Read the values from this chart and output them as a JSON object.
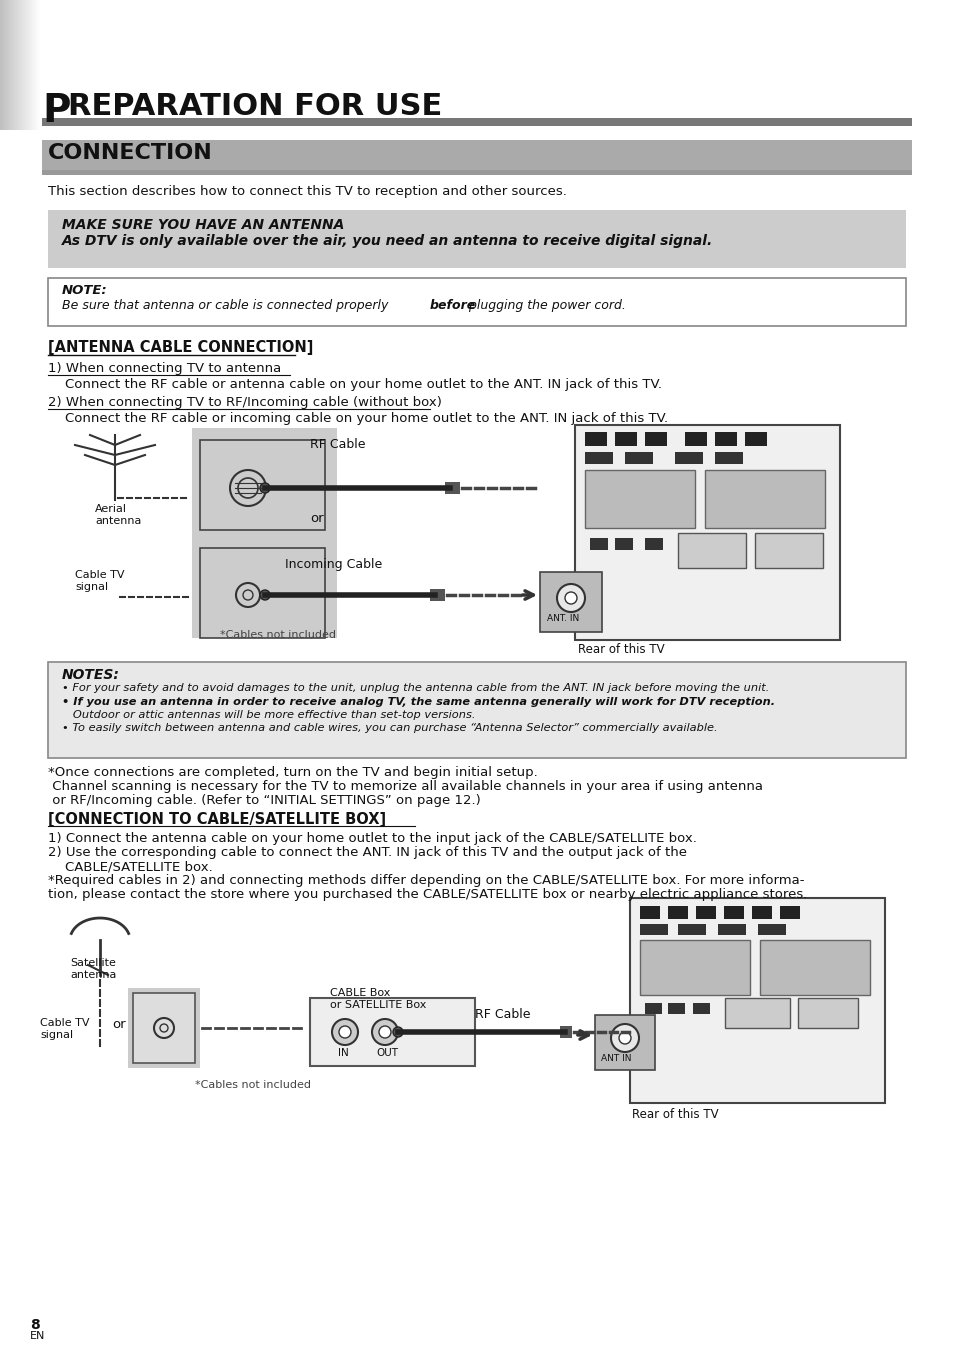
{
  "page_bg": "#ffffff",
  "tab_color": "#cccccc",
  "header_bar_color": "#666666",
  "section_bar_color": "#aaaaaa",
  "note_box_bg": "#dddddd",
  "note_box_border": "#666666",
  "white_box_bg": "#ffffff",
  "white_box_border": "#555555",
  "title_text": "REPARATION FOR USE",
  "title_prefix": "P",
  "section_title": "CONNECTION",
  "intro_text": "This section describes how to connect this TV to reception and other sources.",
  "antenna_note_line1": "MAKE SURE YOU HAVE AN ANTENNA",
  "antenna_note_line2": "As DTV is only available over the air, you need an antenna to receive digital signal.",
  "note_title": "NOTE:",
  "note_body_part1": "Be sure that antenna or cable is connected properly ",
  "note_body_bold": "before",
  "note_body_part2": " plugging the power cord.",
  "antenna_section_title": "[ANTENNA CABLE CONNECTION]",
  "step1_title": "1) When connecting TV to antenna",
  "step1_body": "    Connect the RF cable or antenna cable on your home outlet to the ANT. IN jack of this TV.",
  "step2_title": "2) When connecting TV to RF/Incoming cable (without box)",
  "step2_body": "    Connect the RF cable or incoming cable on your home outlet to the ANT. IN jack of this TV.",
  "diagram1_labels": {
    "aerial_antenna": "Aerial\nantenna",
    "rf_cable": "RF Cable",
    "or_text": "or",
    "cable_tv": "Cable TV\nsignal",
    "incoming_cable": "Incoming Cable",
    "cables_not_included": "*Cables not included",
    "rear_of_tv": "Rear of this TV",
    "ant_in": "ANT. IN"
  },
  "notes_box_title": "NOTES:",
  "notes_line1": "• For your safety and to avoid damages to the unit, unplug the antenna cable from the ANT. IN jack before moving the unit.",
  "notes_line2": "• If you use an antenna in order to receive analog TV, the same antenna generally will work for DTV reception.",
  "notes_line2b": "   Outdoor or attic antennas will be more effective than set-top versions.",
  "notes_line3": "• To easily switch between antenna and cable wires, you can purchase “Antenna Selector” commercially available.",
  "after_notes_line1": "*Once connections are completed, turn on the TV and begin initial setup.",
  "after_notes_line2": " Channel scanning is necessary for the TV to memorize all available channels in your area if using antenna",
  "after_notes_line3": " or RF/Incoming cable. (Refer to “INITIAL SETTINGS” on page 12.)",
  "cable_section_title": "[CONNECTION TO CABLE/SATELLITE BOX]",
  "cable_step1": "1) Connect the antenna cable on your home outlet to the input jack of the CABLE/SATELLITE box.",
  "cable_step2": "2) Use the corresponding cable to connect the ANT. IN jack of this TV and the output jack of the",
  "cable_step2b": "    CABLE/SATELLITE box.",
  "cable_step3": "*Required cables in 2) and connecting methods differ depending on the CABLE/SATELLITE box. For more informa-",
  "cable_step3b": "tion, please contact the store where you purchased the CABLE/SATELLITE box or nearby electric appliance stores.",
  "diagram2_labels": {
    "satellite_antenna": "Satellite\nantenna",
    "cable_box": "CABLE Box\nor SATELLITE Box",
    "cable_tv": "Cable TV\nsignal",
    "or_text": "or",
    "rf_cable": "RF Cable",
    "in_label": "IN",
    "out_label": "OUT",
    "cables_not_included": "*Cables not included",
    "rear_of_tv": "Rear of this TV",
    "ant_in": "ANT IN"
  },
  "page_number": "8",
  "page_en": "EN"
}
